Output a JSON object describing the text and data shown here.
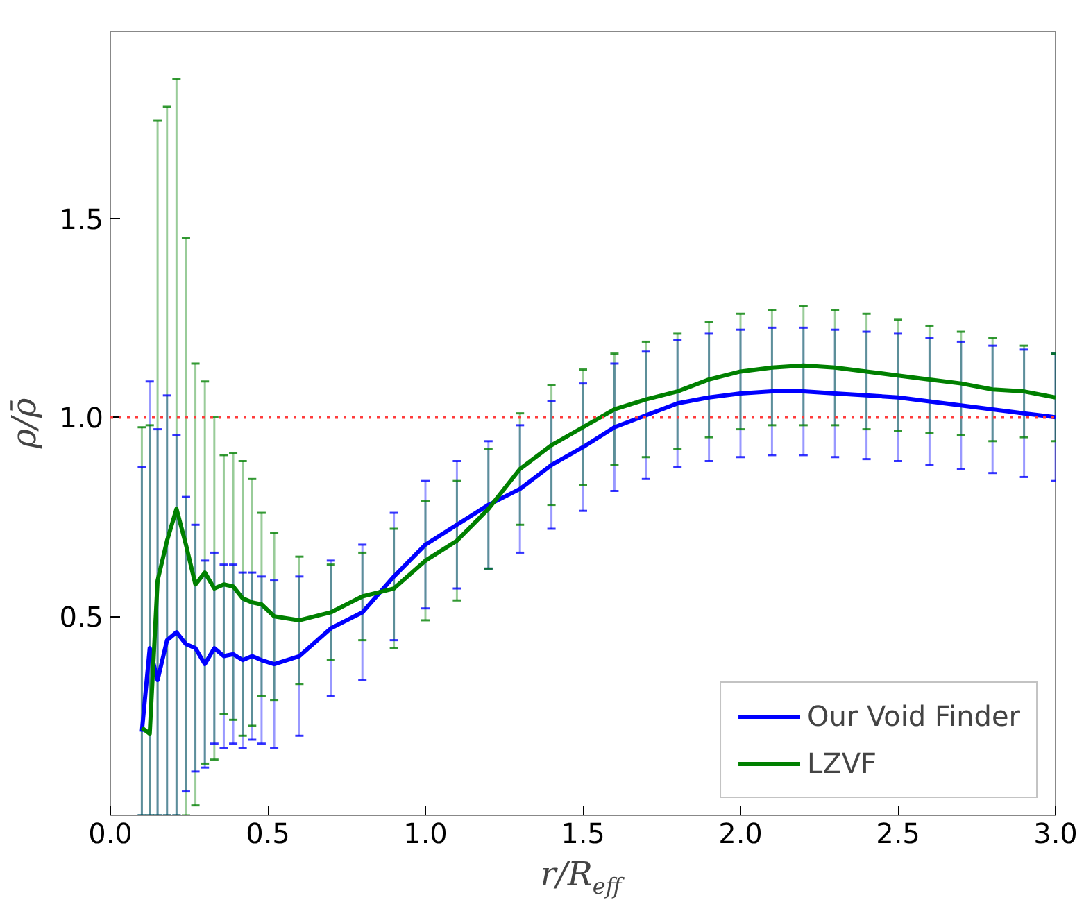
{
  "chart_data": {
    "type": "line",
    "xlabel": "r/R$_{eff}$",
    "ylabel": "ρ/ρ̄",
    "x": [
      0.1,
      0.125,
      0.15,
      0.18,
      0.21,
      0.24,
      0.27,
      0.3,
      0.33,
      0.36,
      0.39,
      0.42,
      0.45,
      0.48,
      0.52,
      0.6,
      0.7,
      0.8,
      0.9,
      1.0,
      1.1,
      1.2,
      1.3,
      1.4,
      1.5,
      1.6,
      1.7,
      1.8,
      1.9,
      2.0,
      2.1,
      2.2,
      2.3,
      2.4,
      2.5,
      2.6,
      2.7,
      2.8,
      2.9,
      3.0
    ],
    "series": [
      {
        "name": "Our Void Finder",
        "color": "#0000ff",
        "values": [
          0.21,
          0.42,
          0.34,
          0.44,
          0.46,
          0.43,
          0.42,
          0.38,
          0.42,
          0.4,
          0.405,
          0.39,
          0.4,
          0.39,
          0.38,
          0.4,
          0.47,
          0.51,
          0.6,
          0.68,
          0.73,
          0.78,
          0.82,
          0.88,
          0.925,
          0.975,
          1.005,
          1.035,
          1.05,
          1.06,
          1.065,
          1.065,
          1.06,
          1.055,
          1.05,
          1.04,
          1.03,
          1.02,
          1.01,
          1.0
        ],
        "errors": [
          [
            0,
            0.875
          ],
          [
            0,
            1.09
          ],
          [
            0,
            0.97
          ],
          [
            0,
            1.055
          ],
          [
            0,
            0.955
          ],
          [
            0.06,
            0.8
          ],
          [
            0.11,
            0.73
          ],
          [
            0.12,
            0.64
          ],
          [
            0.18,
            0.66
          ],
          [
            0.17,
            0.63
          ],
          [
            0.18,
            0.63
          ],
          [
            0.17,
            0.61
          ],
          [
            0.19,
            0.61
          ],
          [
            0.18,
            0.6
          ],
          [
            0.17,
            0.59
          ],
          [
            0.2,
            0.6
          ],
          [
            0.3,
            0.64
          ],
          [
            0.34,
            0.68
          ],
          [
            0.44,
            0.76
          ],
          [
            0.52,
            0.84
          ],
          [
            0.57,
            0.89
          ],
          [
            0.62,
            0.94
          ],
          [
            0.66,
            0.98
          ],
          [
            0.72,
            1.04
          ],
          [
            0.765,
            1.085
          ],
          [
            0.815,
            1.135
          ],
          [
            0.845,
            1.165
          ],
          [
            0.875,
            1.195
          ],
          [
            0.89,
            1.21
          ],
          [
            0.9,
            1.22
          ],
          [
            0.905,
            1.225
          ],
          [
            0.905,
            1.225
          ],
          [
            0.9,
            1.22
          ],
          [
            0.895,
            1.215
          ],
          [
            0.89,
            1.21
          ],
          [
            0.88,
            1.2
          ],
          [
            0.87,
            1.19
          ],
          [
            0.86,
            1.18
          ],
          [
            0.85,
            1.17
          ],
          [
            0.84,
            1.16
          ]
        ]
      },
      {
        "name": "LZVF",
        "color": "#008000",
        "values": [
          0.22,
          0.205,
          0.59,
          0.69,
          0.77,
          0.68,
          0.58,
          0.61,
          0.57,
          0.58,
          0.575,
          0.545,
          0.535,
          0.53,
          0.5,
          0.49,
          0.51,
          0.55,
          0.57,
          0.64,
          0.69,
          0.77,
          0.87,
          0.93,
          0.975,
          1.02,
          1.045,
          1.065,
          1.095,
          1.115,
          1.125,
          1.13,
          1.125,
          1.115,
          1.105,
          1.095,
          1.085,
          1.07,
          1.065,
          1.05
        ],
        "errors": [
          [
            0,
            0.975
          ],
          [
            0,
            0.98
          ],
          [
            0,
            1.745
          ],
          [
            0,
            1.78
          ],
          [
            0,
            1.85
          ],
          [
            0,
            1.45
          ],
          [
            0.025,
            1.135
          ],
          [
            0.13,
            1.09
          ],
          [
            0.14,
            1.0
          ],
          [
            0.255,
            0.905
          ],
          [
            0.24,
            0.91
          ],
          [
            0.2,
            0.89
          ],
          [
            0.225,
            0.845
          ],
          [
            0.3,
            0.76
          ],
          [
            0.29,
            0.71
          ],
          [
            0.33,
            0.65
          ],
          [
            0.39,
            0.63
          ],
          [
            0.44,
            0.66
          ],
          [
            0.42,
            0.72
          ],
          [
            0.49,
            0.79
          ],
          [
            0.54,
            0.84
          ],
          [
            0.62,
            0.92
          ],
          [
            0.73,
            1.01
          ],
          [
            0.78,
            1.08
          ],
          [
            0.83,
            1.12
          ],
          [
            0.88,
            1.16
          ],
          [
            0.9,
            1.19
          ],
          [
            0.92,
            1.21
          ],
          [
            0.95,
            1.24
          ],
          [
            0.97,
            1.26
          ],
          [
            0.98,
            1.27
          ],
          [
            0.98,
            1.28
          ],
          [
            0.98,
            1.27
          ],
          [
            0.97,
            1.26
          ],
          [
            0.965,
            1.245
          ],
          [
            0.96,
            1.23
          ],
          [
            0.955,
            1.215
          ],
          [
            0.94,
            1.2
          ],
          [
            0.95,
            1.18
          ],
          [
            0.94,
            1.16
          ]
        ]
      }
    ],
    "xlim": [
      0,
      3.0
    ],
    "ylim": [
      0,
      1.97
    ],
    "xticks": [
      {
        "value": 0,
        "label": "0.0"
      },
      0.5,
      {
        "value": 1,
        "label": "1.0"
      },
      1.5,
      {
        "value": 2,
        "label": "2.0"
      },
      2.5,
      {
        "value": 3,
        "label": "3.0"
      }
    ],
    "yticks": [
      0.5,
      {
        "value": 1,
        "label": "1.0"
      },
      1.5
    ],
    "ref_lines": [
      {
        "axis": "y",
        "value": 1.0,
        "color": "#ff3b3b",
        "line_style": "dotted"
      }
    ],
    "grid": false,
    "legend": "bottom right",
    "marker": "none",
    "line_style": "solid"
  }
}
